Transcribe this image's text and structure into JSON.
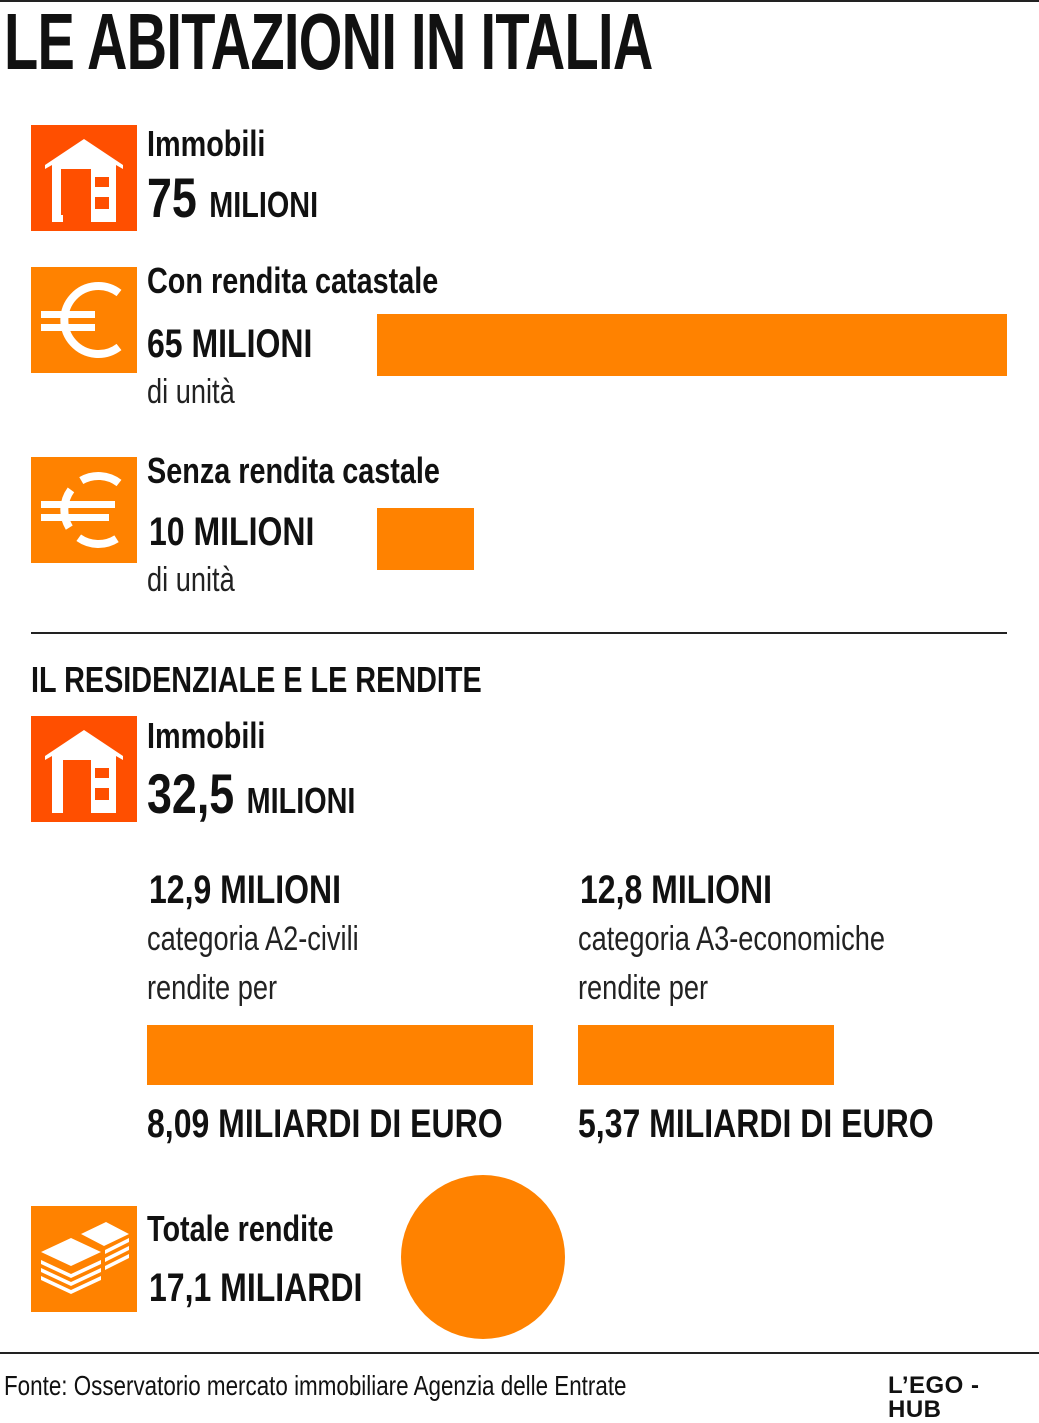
{
  "title": "LE ABITAZIONI IN ITALIA",
  "colors": {
    "accent": "#ff8200",
    "icon_red": "#ff4f00",
    "text": "#111111"
  },
  "block1": {
    "immobili": {
      "label": "Immobili",
      "value": "75",
      "unit": "MILIONI",
      "icon": "house-icon"
    },
    "con_rendita": {
      "label": "Con rendita catastale",
      "value": "65 MILIONI",
      "sub": "di unità",
      "icon": "euro-icon"
    },
    "senza_rendita": {
      "label": "Senza rendita castale",
      "value": "10 MILIONI",
      "sub": "di unità",
      "icon": "euro-crossed-icon"
    }
  },
  "section2": {
    "heading": "IL RESIDENZIALE E LE RENDITE",
    "immobili": {
      "label": "Immobili",
      "value": "32,5",
      "unit": "MILIONI",
      "icon": "house-icon"
    },
    "a2": {
      "count": "12,9 MILIONI",
      "category": "categoria A2-civili",
      "sub": "rendite per",
      "amount": "8,09 MILIARDI DI EURO"
    },
    "a3": {
      "count": "12,8 MILIONI",
      "category": "categoria A3-economiche",
      "sub": "rendite per",
      "amount": "5,37 MILIARDI DI EURO"
    },
    "totale": {
      "label": "Totale rendite",
      "value": "17,1 MILIARDI",
      "icon": "money-stack-icon"
    }
  },
  "footer": {
    "source": "Fonte: Osservatorio mercato immobiliare Agenzia delle Entrate",
    "brand": "L’EGO - HUB"
  },
  "chart_data": [
    {
      "type": "bar",
      "categories": [
        "Con rendita catastale",
        "Senza rendita castale"
      ],
      "values": [
        65,
        10
      ]
    },
    {
      "type": "bar",
      "categories": [
        "categoria A2-civili",
        "categoria A3-economiche"
      ],
      "values": [
        8.09,
        5.37
      ]
    }
  ]
}
